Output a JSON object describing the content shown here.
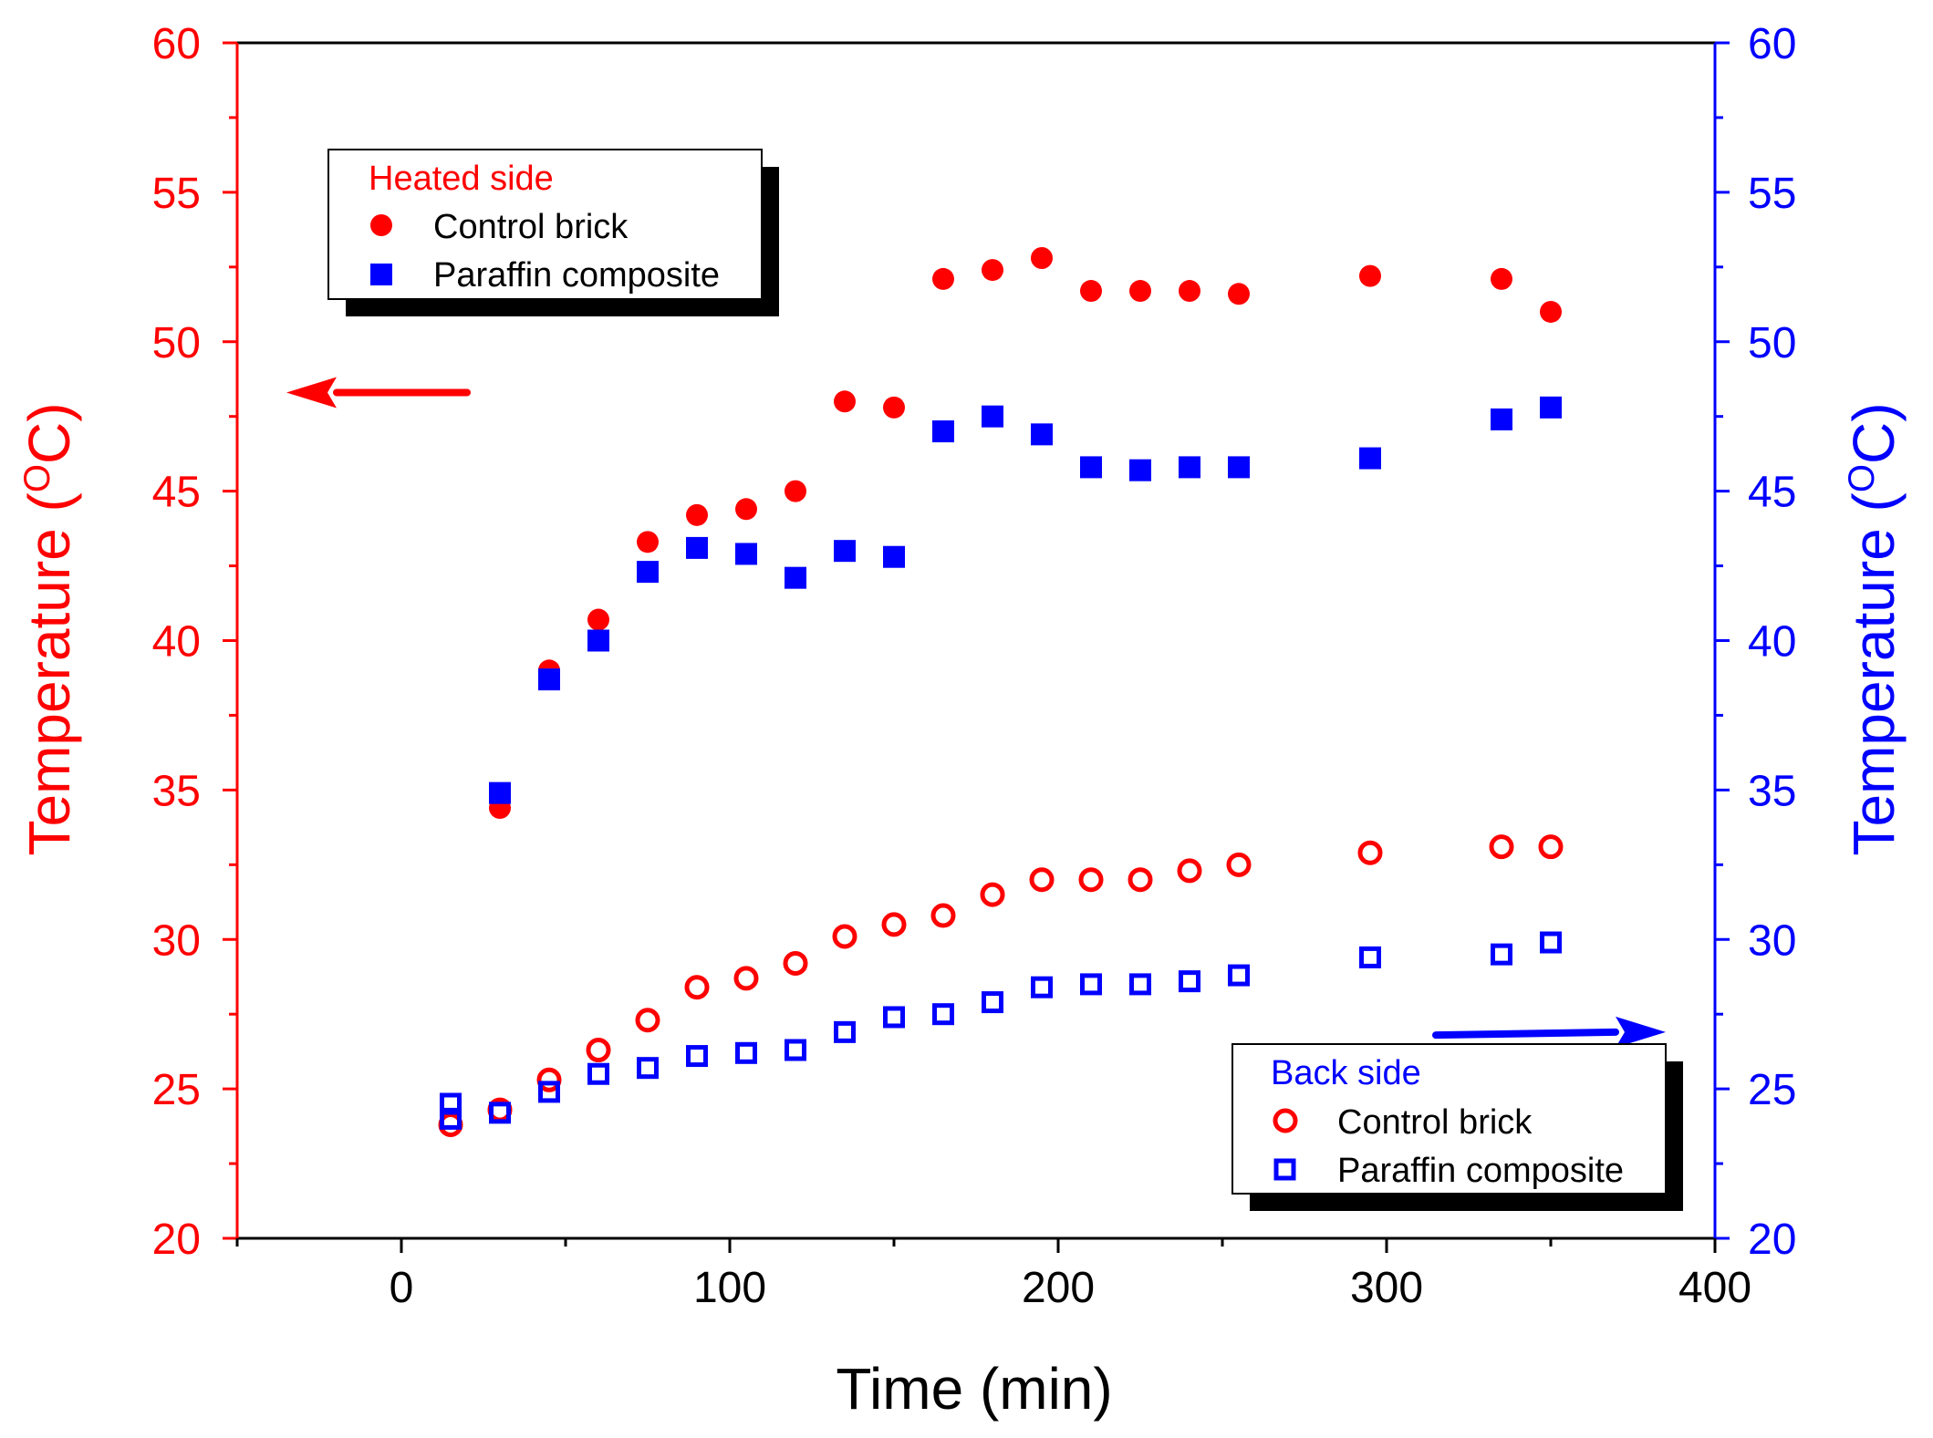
{
  "chart_data": {
    "type": "scatter",
    "xlabel": "Time (min)",
    "ylabel_left": {
      "base": "Temperature (",
      "sup": "O",
      "unit": "C)"
    },
    "ylabel_right": {
      "base": "Temperature (",
      "sup": "O",
      "unit": "C)"
    },
    "xlim": [
      -50,
      400
    ],
    "ylim": [
      20,
      60
    ],
    "x_ticks": [
      0,
      100,
      200,
      300,
      400
    ],
    "y_ticks": [
      20,
      25,
      30,
      35,
      40,
      45,
      50,
      55,
      60
    ],
    "colors": {
      "left_axis": "#ff0000",
      "right_axis": "#0000ff",
      "frame": "#000000"
    },
    "legends": [
      {
        "title": "Heated side",
        "title_color": "#ff0000",
        "position": "upper-left",
        "entries": [
          {
            "label": "Control brick",
            "marker": "filled-circle",
            "color": "#ff0000"
          },
          {
            "label": "Paraffin composite",
            "marker": "filled-square",
            "color": "#0000ff"
          }
        ]
      },
      {
        "title": "Back side",
        "title_color": "#0000ff",
        "position": "lower-right",
        "entries": [
          {
            "label": "Control brick",
            "marker": "open-circle",
            "color": "#ff0000"
          },
          {
            "label": "Paraffin composite",
            "marker": "open-square",
            "color": "#0000ff"
          }
        ]
      }
    ],
    "arrows": [
      {
        "meaning": "left-axis",
        "direction": "left",
        "color": "#ff0000",
        "from": [
          20,
          48.3
        ],
        "to": [
          -35,
          48.3
        ]
      },
      {
        "meaning": "right-axis",
        "direction": "right",
        "color": "#0000ff",
        "from": [
          315,
          26.8
        ],
        "to": [
          385,
          26.9
        ]
      }
    ],
    "series": [
      {
        "name": "Heated side - Control brick",
        "marker": "filled-circle",
        "color": "#ff0000",
        "x": [
          30,
          45,
          60,
          75,
          90,
          105,
          120,
          135,
          150,
          165,
          180,
          195,
          210,
          225,
          240,
          255,
          295,
          335,
          350
        ],
        "y": [
          34.4,
          39.0,
          40.7,
          43.3,
          44.2,
          44.4,
          45.0,
          48.0,
          47.8,
          52.1,
          52.4,
          52.8,
          51.7,
          51.7,
          51.7,
          51.6,
          52.2,
          52.1,
          51.0
        ]
      },
      {
        "name": "Heated side - Paraffin composite",
        "marker": "filled-square",
        "color": "#0000ff",
        "x": [
          30,
          45,
          60,
          75,
          90,
          105,
          120,
          135,
          150,
          165,
          180,
          195,
          210,
          225,
          240,
          255,
          295,
          335,
          350
        ],
        "y": [
          34.9,
          38.7,
          40.0,
          42.3,
          43.1,
          42.9,
          42.1,
          43.0,
          42.8,
          47.0,
          47.5,
          46.9,
          45.8,
          45.7,
          45.8,
          45.8,
          46.1,
          47.4,
          47.8
        ]
      },
      {
        "name": "Back side - Control brick",
        "marker": "open-circle",
        "color": "#ff0000",
        "x": [
          15,
          30,
          45,
          60,
          75,
          90,
          105,
          120,
          135,
          150,
          165,
          180,
          195,
          210,
          225,
          240,
          255,
          295,
          335,
          350
        ],
        "y": [
          23.8,
          24.3,
          25.3,
          26.3,
          27.3,
          28.4,
          28.7,
          29.2,
          30.1,
          30.5,
          30.8,
          31.5,
          32.0,
          32.0,
          32.0,
          32.3,
          32.5,
          32.9,
          33.1,
          33.1
        ]
      },
      {
        "name": "Back side - Paraffin composite",
        "marker": "open-square",
        "color": "#0000ff",
        "x": [
          15,
          15,
          30,
          45,
          60,
          75,
          90,
          105,
          120,
          135,
          150,
          165,
          180,
          195,
          210,
          225,
          240,
          255,
          295,
          335,
          350
        ],
        "y": [
          24.5,
          24.0,
          24.2,
          24.9,
          25.5,
          25.7,
          26.1,
          26.2,
          26.3,
          26.9,
          27.4,
          27.5,
          27.9,
          28.4,
          28.5,
          28.5,
          28.6,
          28.8,
          29.4,
          29.5,
          29.9
        ]
      }
    ]
  }
}
